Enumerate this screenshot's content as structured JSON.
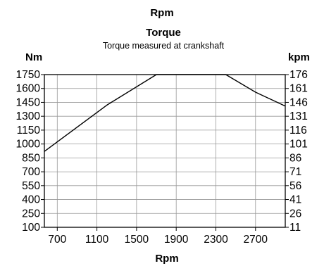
{
  "chart_data": {
    "type": "line",
    "top_label": "Rpm",
    "title": "Torque",
    "subtitle": "Torque measured at crankshaft",
    "xlabel": "Rpm",
    "ylabel_left": "Nm",
    "ylabel_right": "kpm",
    "xlim": [
      570,
      3000
    ],
    "ylim": [
      100,
      1750
    ],
    "x_ticks": [
      "700",
      "1100",
      "1500",
      "1900",
      "2300",
      "2700"
    ],
    "x_tick_values": [
      700,
      1100,
      1500,
      1900,
      2300,
      2700
    ],
    "y_ticks_left": [
      "1750",
      "1600",
      "1450",
      "1300",
      "1150",
      "1000",
      "850",
      "700",
      "550",
      "400",
      "250",
      "100"
    ],
    "y_tick_values_left": [
      1750,
      1600,
      1450,
      1300,
      1150,
      1000,
      850,
      700,
      550,
      400,
      250,
      100
    ],
    "y_ticks_right": [
      "176",
      "161",
      "146",
      "131",
      "116",
      "101",
      "86",
      "71",
      "56",
      "41",
      "26",
      "11"
    ],
    "grid": true,
    "series": [
      {
        "x": [
          570,
          1200,
          1700,
          2400,
          2700,
          3000
        ],
        "y": [
          920,
          1420,
          1750,
          1750,
          1560,
          1410
        ]
      }
    ],
    "line_color": "#000000",
    "grid_color": "#999999"
  }
}
